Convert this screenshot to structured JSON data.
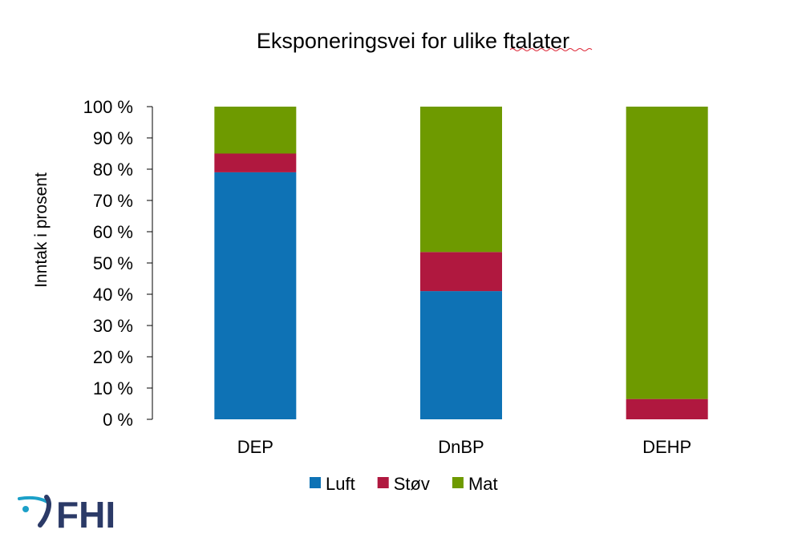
{
  "chart_data": {
    "type": "bar",
    "stacked": true,
    "title": "Eksponeringsvei for ulike ftalater",
    "xlabel": "",
    "ylabel": "Inntak i prosent",
    "categories": [
      "DEP",
      "DnBP",
      "DEHP"
    ],
    "series": [
      {
        "name": "Luft",
        "color": "#0E72B5",
        "values": [
          79,
          41,
          0
        ]
      },
      {
        "name": "Støv",
        "color": "#B0183F",
        "values": [
          6,
          12.5,
          6.5
        ]
      },
      {
        "name": "Mat",
        "color": "#6E9A00",
        "values": [
          15,
          46.5,
          93.5
        ]
      }
    ],
    "ylim": [
      0,
      100
    ],
    "yticks": [
      "0 %",
      "10 %",
      "20 %",
      "30 %",
      "40 %",
      "50 %",
      "60 %",
      "70 %",
      "80 %",
      "90 %",
      "100 %"
    ],
    "grid": false,
    "legend_position": "bottom"
  },
  "logo": {
    "text": "FHI",
    "color": "#2B3A67"
  }
}
